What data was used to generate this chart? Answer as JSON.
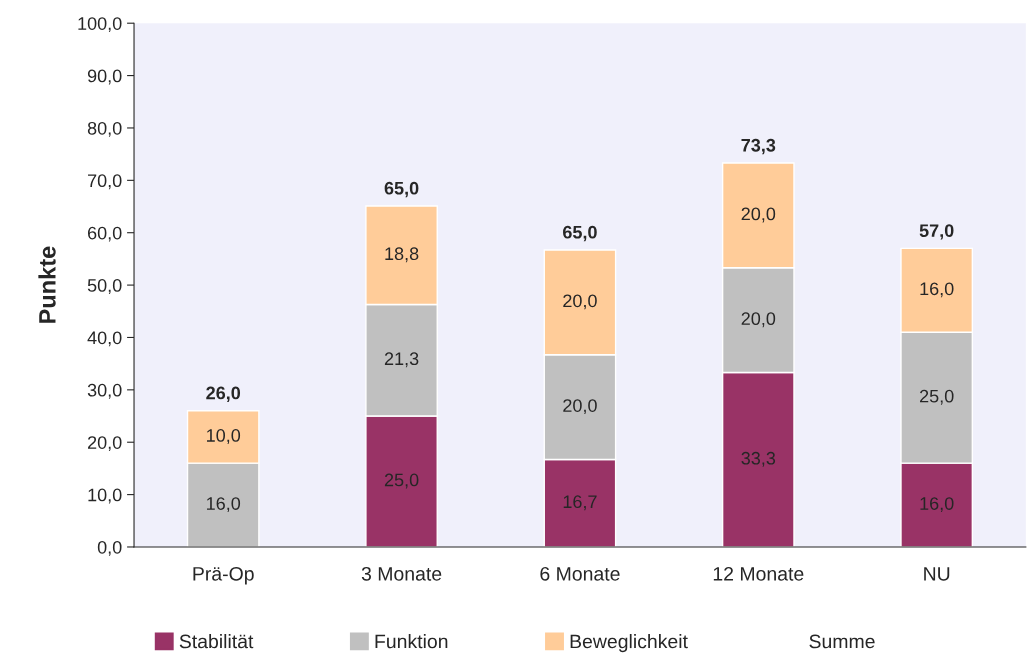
{
  "chart_data": {
    "type": "bar",
    "stacked": true,
    "ylabel": "Punkte",
    "categories": [
      "Prä-Op",
      "3 Monate",
      "6 Monate",
      "12 Monate",
      "NU"
    ],
    "series": [
      {
        "name": "Stabilität",
        "color": "#993366",
        "values": [
          0,
          25.0,
          16.7,
          33.3,
          16.0
        ],
        "value_labels": [
          null,
          "25,0",
          "16,7",
          "33,3",
          "16,0"
        ]
      },
      {
        "name": "Funktion",
        "color": "#c0c0c0",
        "values": [
          16.0,
          21.3,
          20.0,
          20.0,
          25.0
        ],
        "value_labels": [
          "16,0",
          "21,3",
          "20,0",
          "20,0",
          "25,0"
        ]
      },
      {
        "name": "Beweglichkeit",
        "color": "#ffcc99",
        "values": [
          10.0,
          18.8,
          20.0,
          20.0,
          16.0
        ],
        "value_labels": [
          "10,0",
          "18,8",
          "20,0",
          "20,0",
          "16,0"
        ]
      }
    ],
    "annotations": [
      "Summe",
      {
        "text": "26,0",
        "x": "Prä-Op",
        "y": 26.0
      },
      {
        "text": "65,0",
        "x": "3 Monate",
        "y": 65.1
      },
      {
        "text": "65,0",
        "x": "6 Monate",
        "y": 56.7
      },
      {
        "text": "73,3",
        "x": "12 Monate",
        "y": 73.3
      },
      {
        "text": "57,0",
        "x": "NU",
        "y": 57.0
      }
    ],
    "ylim": [
      0,
      100
    ],
    "yticks": [
      {
        "value": 0,
        "label": "0,0"
      },
      {
        "value": 10,
        "label": "10,0"
      },
      {
        "value": 20,
        "label": "20,0"
      },
      {
        "value": 30,
        "label": "30,0"
      },
      {
        "value": 40,
        "label": "40,0"
      },
      {
        "value": 50,
        "label": "50,0"
      },
      {
        "value": 60,
        "label": "60,0"
      },
      {
        "value": 70,
        "label": "70,0"
      },
      {
        "value": 80,
        "label": "80,0"
      },
      {
        "value": 90,
        "label": "90,0"
      },
      {
        "value": 100,
        "label": "100,0"
      }
    ],
    "grid": false,
    "legend": "bottom"
  }
}
